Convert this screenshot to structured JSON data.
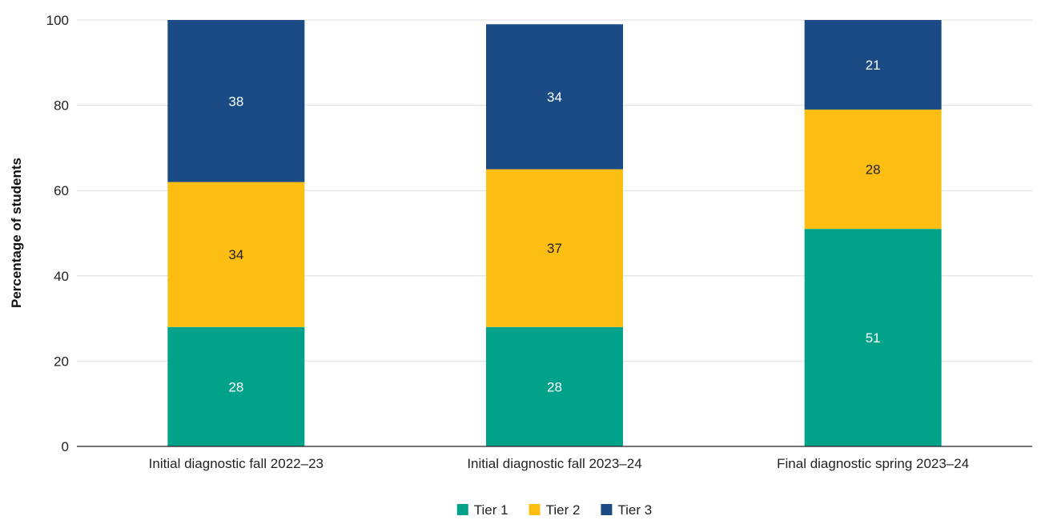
{
  "chart_data": {
    "type": "bar",
    "stacked": true,
    "title": "",
    "xlabel": "",
    "ylabel": "Percentage of students",
    "ylim": [
      0,
      100
    ],
    "yticks": [
      0,
      20,
      40,
      60,
      80,
      100
    ],
    "grid": true,
    "legend_position": "bottom-center",
    "categories": [
      "Initial diagnostic fall 2022–23",
      "Initial diagnostic fall 2023–24",
      "Final diagnostic spring 2023–24"
    ],
    "series": [
      {
        "name": "Tier 1",
        "values": [
          28,
          28,
          51
        ],
        "color": "#00a28a",
        "label_color": "#ffffff"
      },
      {
        "name": "Tier 2",
        "values": [
          34,
          37,
          28
        ],
        "color": "#fcbe12",
        "label_color": "#222222"
      },
      {
        "name": "Tier 3",
        "values": [
          38,
          34,
          21
        ],
        "color": "#1a4b85",
        "label_color": "#ffffff"
      }
    ]
  }
}
